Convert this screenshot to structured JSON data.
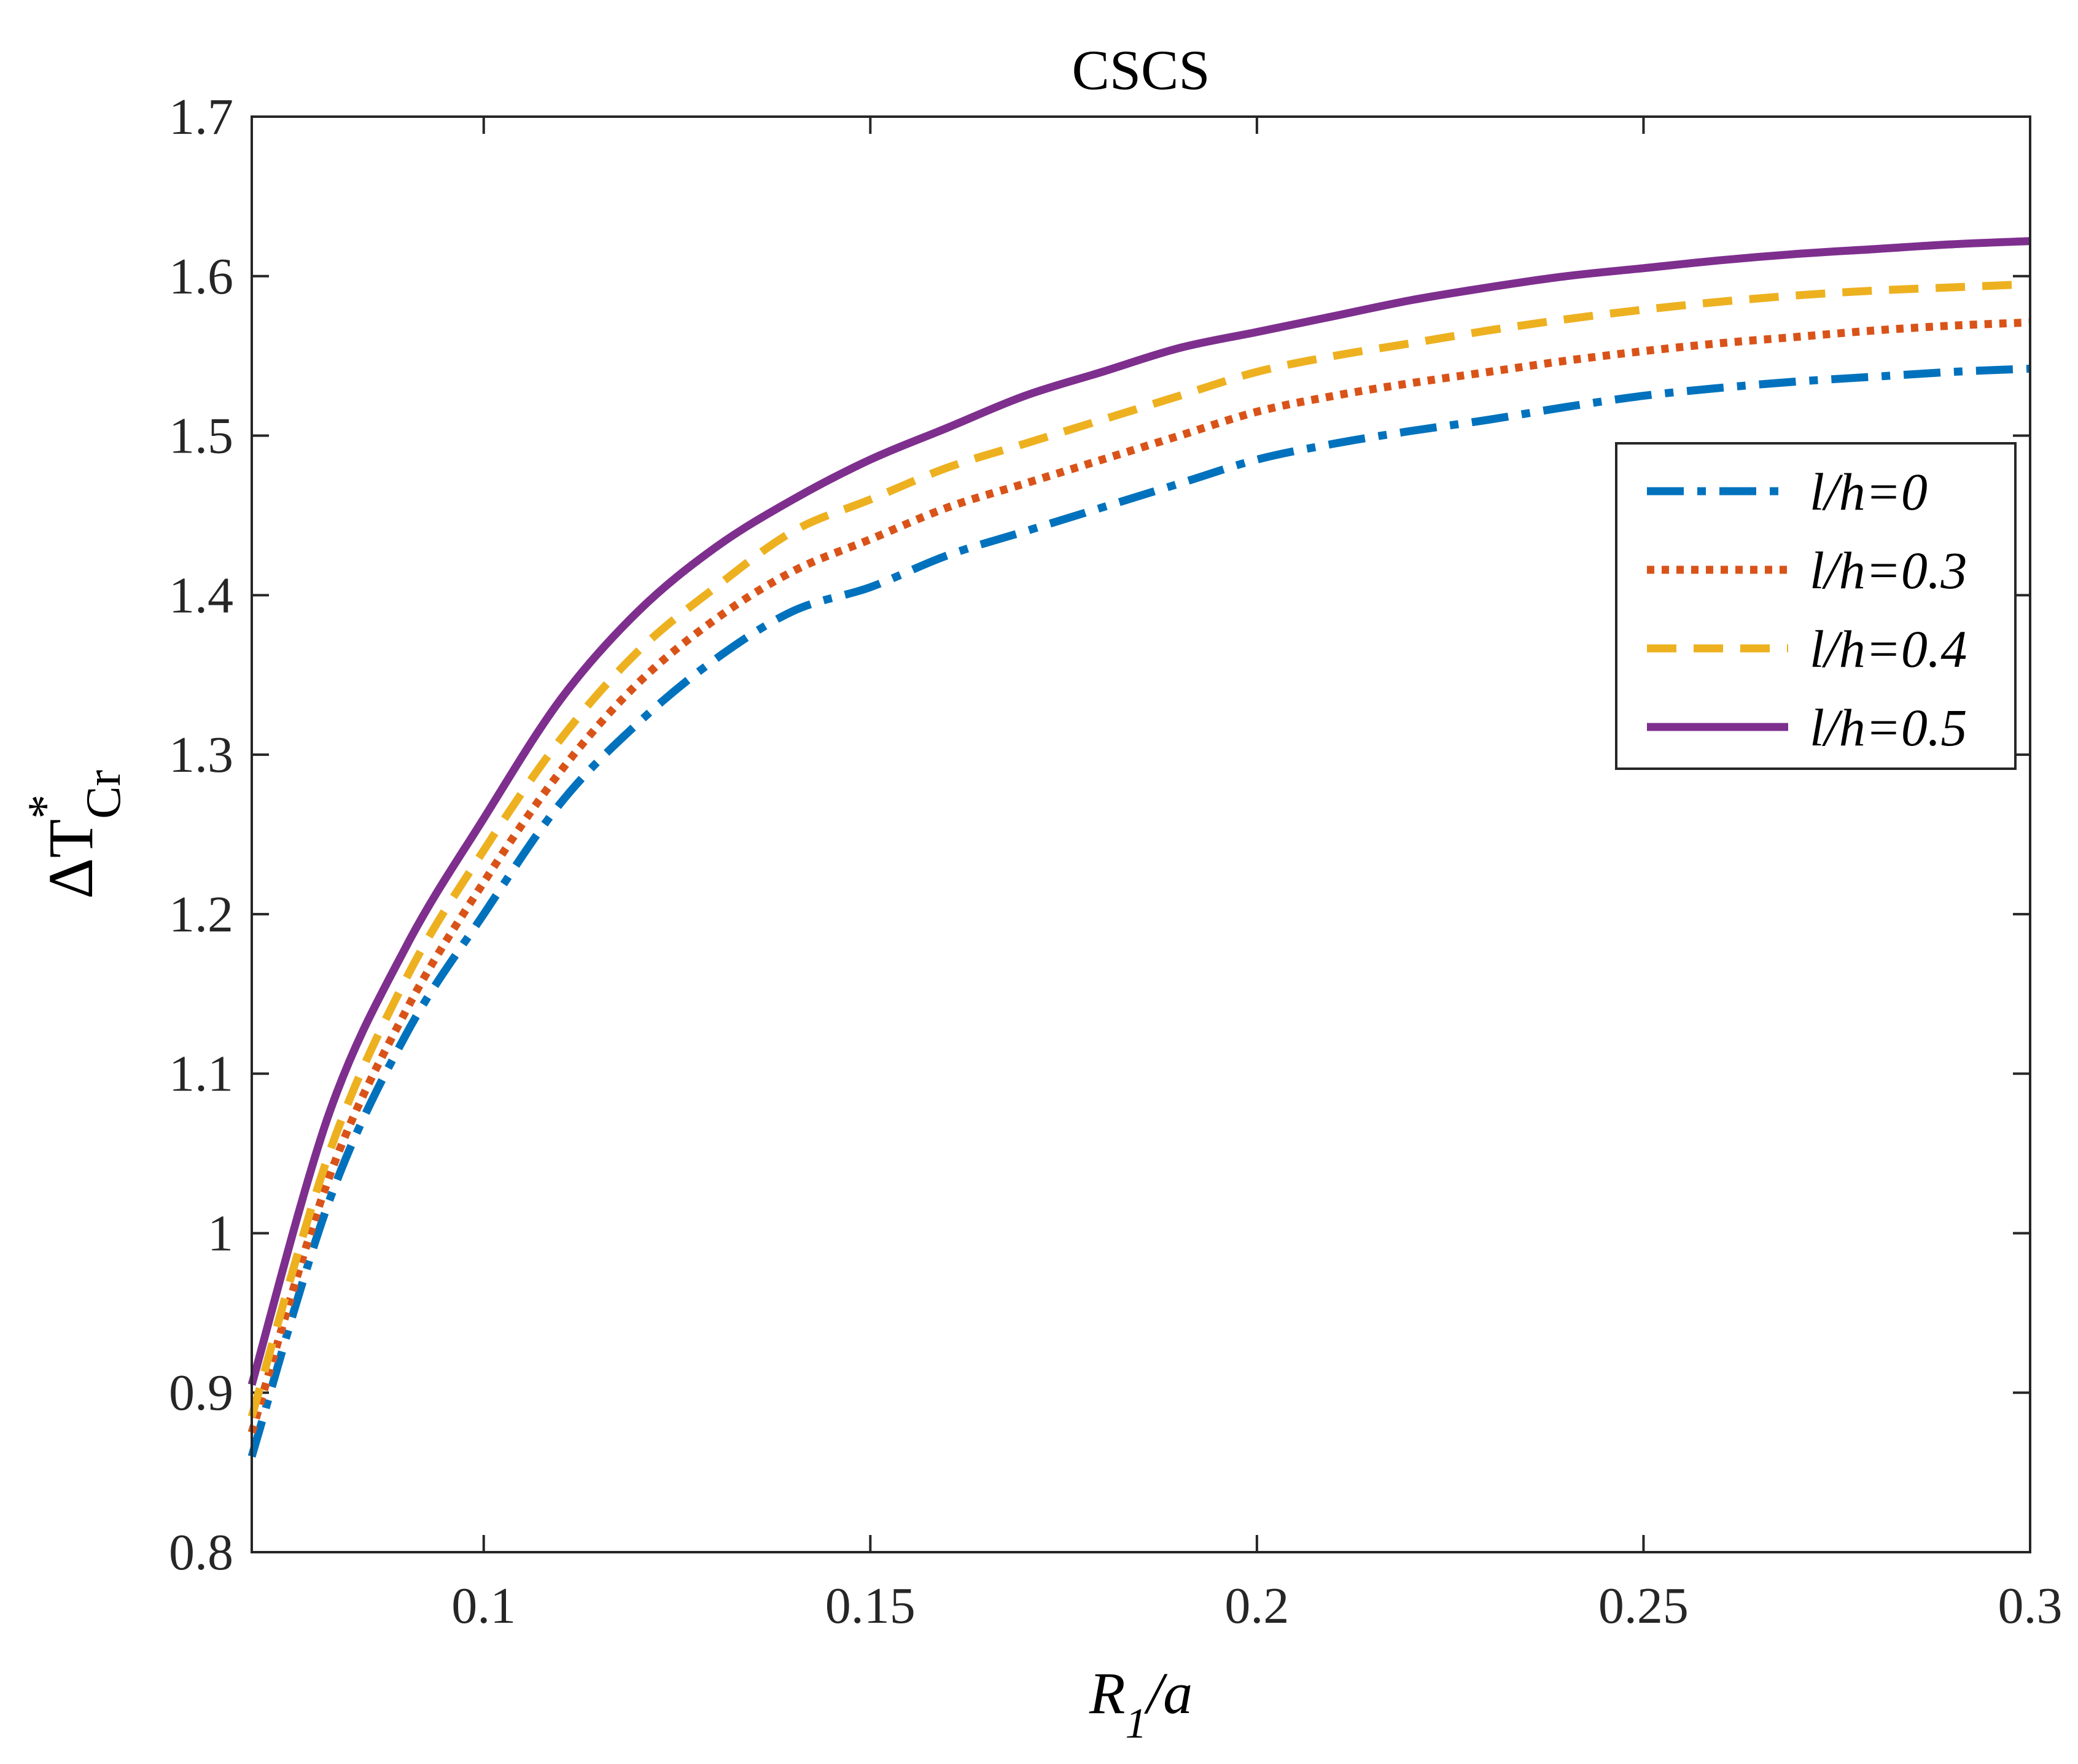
{
  "chart_data": {
    "type": "line",
    "title": "CSCS",
    "xlabel": {
      "main": "R",
      "sub": "1",
      "rest": "/a"
    },
    "ylabel": {
      "delta": "Δ",
      "main": "T",
      "sup": "*",
      "sub": "Cr"
    },
    "xlim": [
      0.07,
      0.3
    ],
    "ylim": [
      0.8,
      1.7
    ],
    "xticks": [
      0.1,
      0.15,
      0.2,
      0.25,
      0.3
    ],
    "xtick_labels": [
      "0.1",
      "0.15",
      "0.2",
      "0.25",
      "0.3"
    ],
    "yticks": [
      0.8,
      0.9,
      1.0,
      1.1,
      1.2,
      1.3,
      1.4,
      1.5,
      1.6,
      1.7
    ],
    "ytick_labels": [
      "0.8",
      "0.9",
      "1",
      "1.1",
      "1.2",
      "1.3",
      "1.4",
      "1.5",
      "1.6",
      "1.7"
    ],
    "grid": false,
    "legend_position": "right",
    "x": [
      0.07,
      0.08,
      0.09,
      0.1,
      0.11,
      0.12,
      0.13,
      0.14,
      0.15,
      0.16,
      0.17,
      0.18,
      0.19,
      0.2,
      0.21,
      0.22,
      0.23,
      0.24,
      0.25,
      0.26,
      0.27,
      0.28,
      0.29,
      0.3
    ],
    "series": [
      {
        "name": "l/h=0",
        "color": "#0072BD",
        "dash": "dashdot",
        "values": [
          0.86,
          1.02,
          1.125,
          1.2,
          1.27,
          1.32,
          1.36,
          1.39,
          1.405,
          1.425,
          1.44,
          1.455,
          1.47,
          1.485,
          1.495,
          1.503,
          1.51,
          1.518,
          1.525,
          1.53,
          1.534,
          1.537,
          1.54,
          1.542
        ]
      },
      {
        "name": "l/h=0.3",
        "color": "#D95319",
        "dash": "dotted",
        "values": [
          0.875,
          1.035,
          1.14,
          1.22,
          1.29,
          1.345,
          1.385,
          1.415,
          1.435,
          1.455,
          1.47,
          1.485,
          1.5,
          1.515,
          1.525,
          1.533,
          1.54,
          1.547,
          1.553,
          1.558,
          1.562,
          1.566,
          1.569,
          1.571
        ]
      },
      {
        "name": "l/h=0.4",
        "color": "#EDB120",
        "dash": "dashed",
        "values": [
          0.885,
          1.05,
          1.16,
          1.24,
          1.31,
          1.365,
          1.405,
          1.44,
          1.46,
          1.48,
          1.495,
          1.51,
          1.525,
          1.54,
          1.55,
          1.558,
          1.566,
          1.573,
          1.579,
          1.584,
          1.588,
          1.591,
          1.593,
          1.595
        ]
      },
      {
        "name": "l/h=0.5",
        "color": "#7E2F8E",
        "dash": "solid",
        "values": [
          0.905,
          1.075,
          1.18,
          1.26,
          1.335,
          1.39,
          1.43,
          1.46,
          1.485,
          1.505,
          1.525,
          1.54,
          1.555,
          1.565,
          1.575,
          1.585,
          1.593,
          1.6,
          1.605,
          1.61,
          1.614,
          1.617,
          1.62,
          1.622
        ]
      }
    ]
  }
}
